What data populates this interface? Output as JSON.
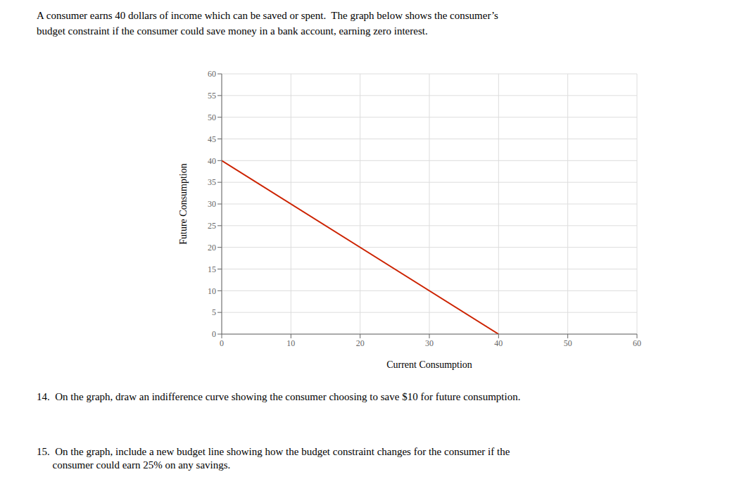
{
  "chart_data": {
    "type": "line",
    "title": "A consumer earns 40 dollars of income which can be saved or spent.  The graph below shows the consumer’s",
    "subtitle": "budget constraint if the consumer could save money in a bank account, earning zero interest.",
    "xlabel": "Current Consumption",
    "ylabel": "Future Consumption",
    "x": [
      0,
      40
    ],
    "series": [
      {
        "color": "#cc2200",
        "values": [
          40,
          0
        ]
      }
    ],
    "xlim": [
      0,
      60
    ],
    "ylim": [
      0,
      60
    ],
    "xticks": [
      0,
      10,
      20,
      30,
      40,
      50,
      60
    ],
    "yticks": [
      0,
      5,
      10,
      15,
      20,
      25,
      30,
      35,
      40,
      45,
      50,
      55,
      60
    ],
    "grid": true,
    "annotations": [
      "14.  On the graph, draw an indifference curve showing the consumer choosing to save $10 for future consumption.",
      "15.  On the graph, include a new budget line showing how the budget constraint changes for the consumer if the",
      "      consumer could earn 25% on any savings."
    ]
  }
}
